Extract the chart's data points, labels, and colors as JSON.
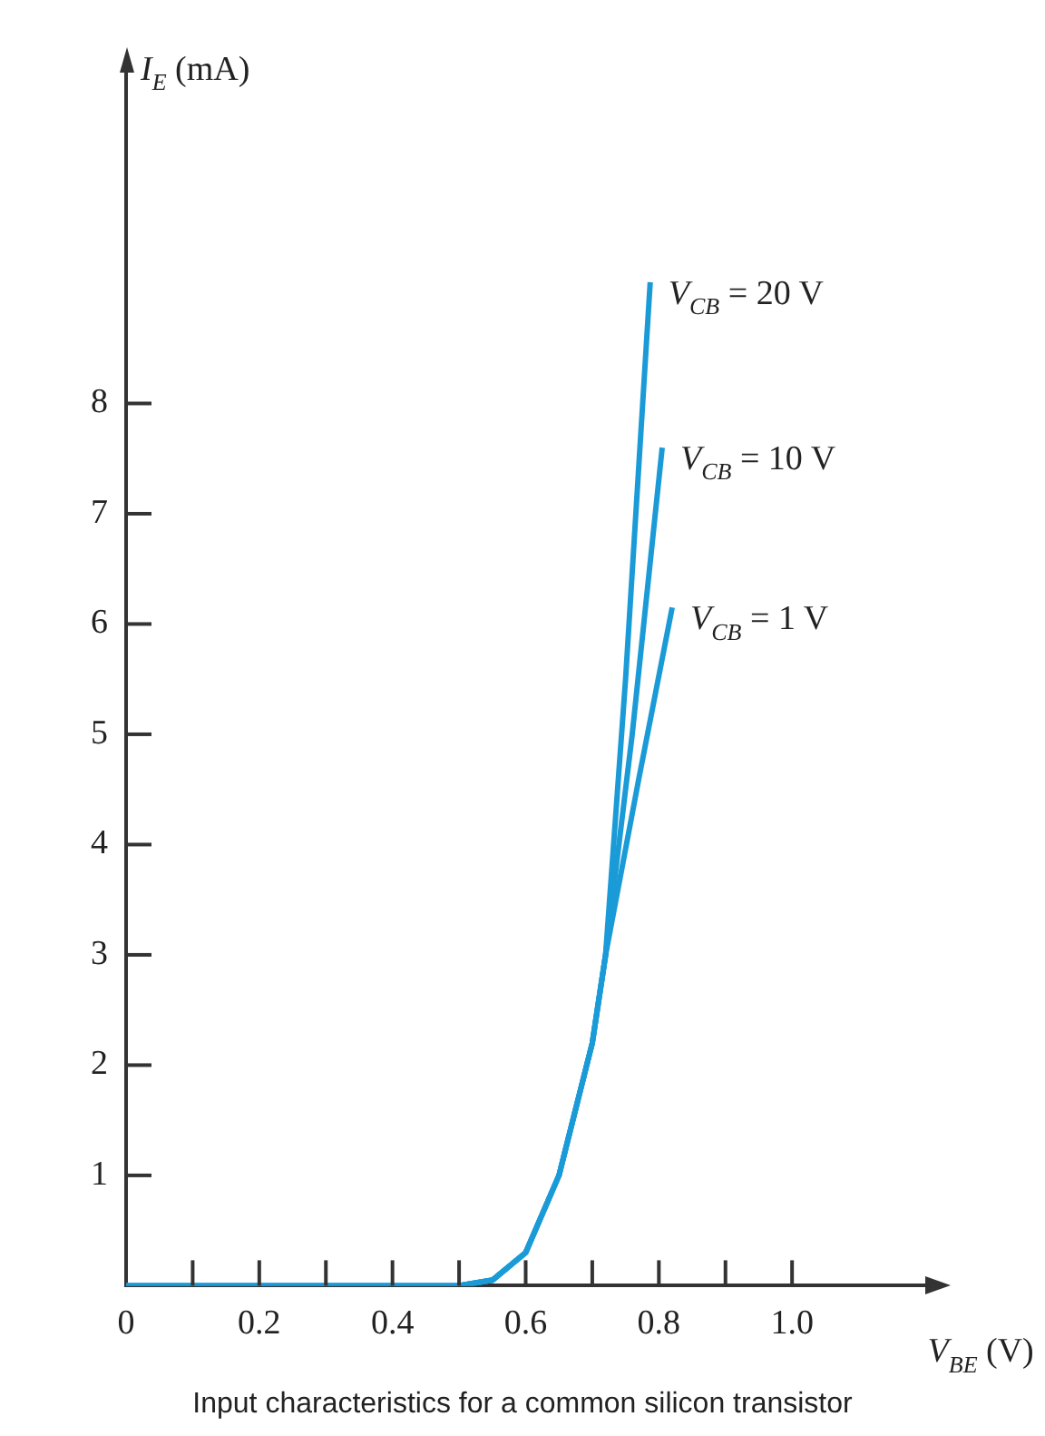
{
  "chart_data": {
    "type": "line",
    "xlabel": "V$_{BE}$ (V)",
    "ylabel": "I$_{E}$ (mA)",
    "xlim": [
      0,
      1.2
    ],
    "ylim": [
      0,
      11
    ],
    "xticks": [
      0,
      {
        "value": 0.1,
        "label": null
      },
      0.2,
      {
        "value": 0.3,
        "label": null
      },
      0.4,
      {
        "value": 0.5,
        "label": null
      },
      0.6,
      {
        "value": 0.7,
        "label": null
      },
      0.8,
      {
        "value": 0.9,
        "label": null
      },
      {
        "value": 1.0,
        "label": "1.0"
      }
    ],
    "yticks": [
      {
        "value": 0,
        "label": null
      },
      1,
      2,
      3,
      4,
      5,
      6,
      7,
      8
    ],
    "grid": false,
    "legend": false,
    "marker": "none",
    "line_style": "solid",
    "series": [
      {
        "name": "V$_{CB}$ = 20 V",
        "color": "#1a9bd7",
        "x": [
          0,
          0.5,
          0.55,
          0.6,
          0.65,
          0.7,
          0.72,
          0.75,
          0.787
        ],
        "values": [
          0,
          0,
          0.05,
          0.3,
          1.0,
          2.2,
          3.0,
          5.5,
          9.1
        ]
      },
      {
        "name": "V$_{CB}$ = 10 V",
        "color": "#1a9bd7",
        "x": [
          0,
          0.5,
          0.55,
          0.6,
          0.65,
          0.7,
          0.72,
          0.76,
          0.805
        ],
        "values": [
          0,
          0,
          0.05,
          0.3,
          1.0,
          2.2,
          3.0,
          5.0,
          7.6
        ]
      },
      {
        "name": "V$_{CB}$ = 1 V",
        "color": "#1a9bd7",
        "x": [
          0,
          0.5,
          0.55,
          0.6,
          0.65,
          0.7,
          0.72,
          0.77,
          0.82
        ],
        "values": [
          0,
          0,
          0.05,
          0.3,
          1.0,
          2.2,
          3.0,
          4.6,
          6.15
        ]
      }
    ],
    "annotations": [
      "Input characteristics for a common silicon transistor"
    ]
  }
}
